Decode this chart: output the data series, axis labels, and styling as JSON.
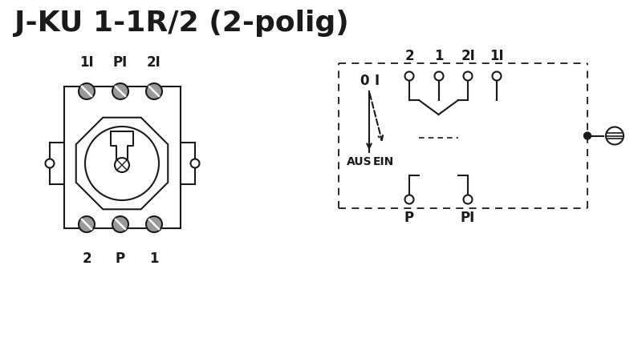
{
  "title": "J-KU 1-1R/2 (2-polig)",
  "line_color": "#1a1a1a",
  "gray_color": "#999999",
  "title_fontsize": 26,
  "label_fontsize": 12,
  "top_labels_left": [
    "1I",
    "PI",
    "2I"
  ],
  "bottom_labels_left": [
    "2",
    "P",
    "1"
  ],
  "top_labels_right": [
    "2",
    "1",
    "2I",
    "1I"
  ],
  "bottom_labels_right": [
    "P",
    "PI"
  ],
  "switch_label_aus": "AUS",
  "switch_label_ein": "EIN"
}
